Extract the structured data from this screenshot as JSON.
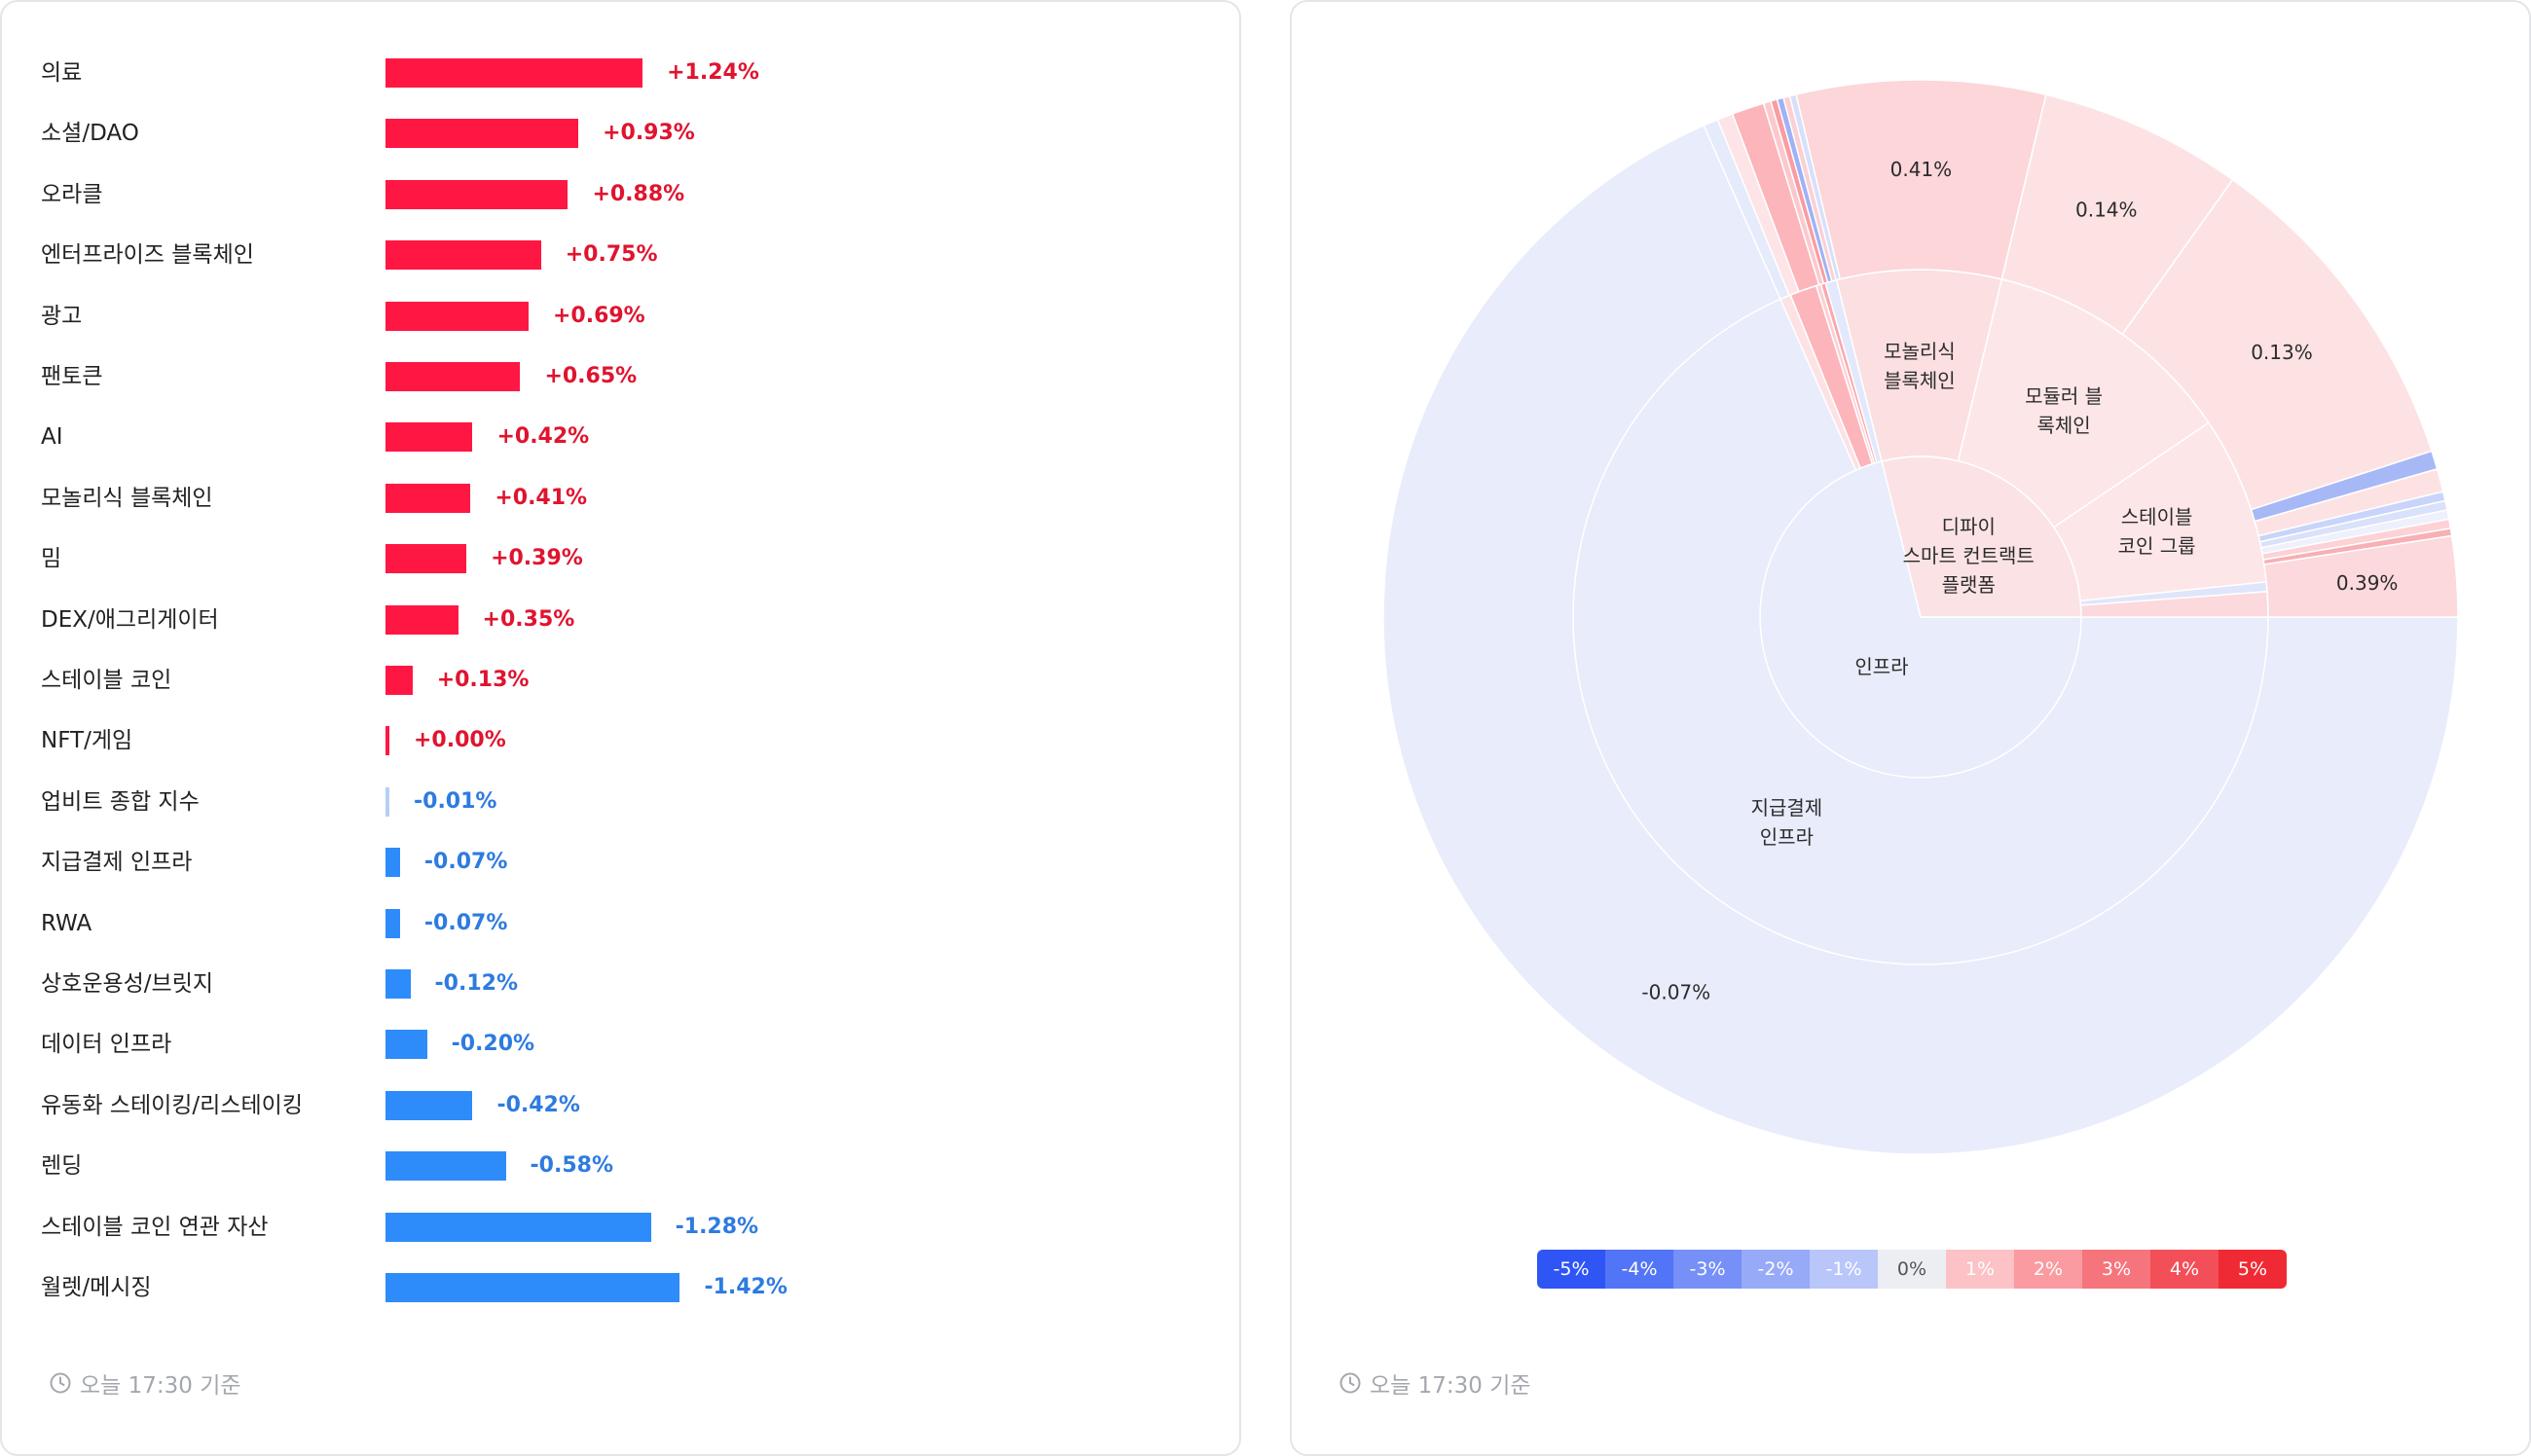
{
  "left": {
    "rows": [
      {
        "label": "의료",
        "value": 1.24,
        "text": "+1.24%"
      },
      {
        "label": "소셜/DAO",
        "value": 0.93,
        "text": "+0.93%"
      },
      {
        "label": "오라클",
        "value": 0.88,
        "text": "+0.88%"
      },
      {
        "label": "엔터프라이즈 블록체인",
        "value": 0.75,
        "text": "+0.75%"
      },
      {
        "label": "광고",
        "value": 0.69,
        "text": "+0.69%"
      },
      {
        "label": "팬토큰",
        "value": 0.65,
        "text": "+0.65%"
      },
      {
        "label": "AI",
        "value": 0.42,
        "text": "+0.42%"
      },
      {
        "label": "모놀리식 블록체인",
        "value": 0.41,
        "text": "+0.41%"
      },
      {
        "label": "밈",
        "value": 0.39,
        "text": "+0.39%"
      },
      {
        "label": "DEX/애그리게이터",
        "value": 0.35,
        "text": "+0.35%"
      },
      {
        "label": "스테이블 코인",
        "value": 0.13,
        "text": "+0.13%"
      },
      {
        "label": "NFT/게임",
        "value": 0.0,
        "text": "+0.00%"
      },
      {
        "label": "업비트 종합 지수",
        "value": -0.01,
        "text": "-0.01%"
      },
      {
        "label": "지급결제 인프라",
        "value": -0.07,
        "text": "-0.07%"
      },
      {
        "label": "RWA",
        "value": -0.07,
        "text": "-0.07%"
      },
      {
        "label": "상호운용성/브릿지",
        "value": -0.12,
        "text": "-0.12%"
      },
      {
        "label": "데이터 인프라",
        "value": -0.2,
        "text": "-0.20%"
      },
      {
        "label": "유동화 스테이킹/리스테이킹",
        "value": -0.42,
        "text": "-0.42%"
      },
      {
        "label": "렌딩",
        "value": -0.58,
        "text": "-0.58%"
      },
      {
        "label": "스테이블 코인 연관 자산",
        "value": -1.28,
        "text": "-1.28%"
      },
      {
        "label": "월렛/메시징",
        "value": -1.42,
        "text": "-1.42%"
      }
    ],
    "footer": "오늘 17:30 기준"
  },
  "right": {
    "footer": "오늘 17:30 기준",
    "legend": [
      {
        "label": "-5%",
        "color": "#2f55f5"
      },
      {
        "label": "-4%",
        "color": "#5274f6"
      },
      {
        "label": "-3%",
        "color": "#7690f7"
      },
      {
        "label": "-2%",
        "color": "#97aaf8"
      },
      {
        "label": "-1%",
        "color": "#b9c6fa"
      },
      {
        "label": "0%",
        "color": "#eceef3",
        "text_color": "#555"
      },
      {
        "label": "1%",
        "color": "#fcc2c5"
      },
      {
        "label": "2%",
        "color": "#f99ba0"
      },
      {
        "label": "3%",
        "color": "#f6747b"
      },
      {
        "label": "4%",
        "color": "#f34f58"
      },
      {
        "label": "5%",
        "color": "#f02a34"
      }
    ]
  },
  "chart_data": [
    {
      "type": "bar",
      "orientation": "horizontal",
      "categories": [
        "의료",
        "소셜/DAO",
        "오라클",
        "엔터프라이즈 블록체인",
        "광고",
        "팬토큰",
        "AI",
        "모놀리식 블록체인",
        "밈",
        "DEX/애그리게이터",
        "스테이블 코인",
        "NFT/게임",
        "업비트 종합 지수",
        "지급결제 인프라",
        "RWA",
        "상호운용성/브릿지",
        "데이터 인프라",
        "유동화 스테이킹/리스테이킹",
        "렌딩",
        "스테이블 코인 연관 자산",
        "월렛/메시징"
      ],
      "values": [
        1.24,
        0.93,
        0.88,
        0.75,
        0.69,
        0.65,
        0.42,
        0.41,
        0.39,
        0.35,
        0.13,
        0.0,
        -0.01,
        -0.07,
        -0.07,
        -0.12,
        -0.2,
        -0.42,
        -0.58,
        -1.28,
        -1.42
      ],
      "colors": {
        "positive": "#ff1744",
        "negative": "#2e8bfa",
        "zero_neg": "#b7cff5"
      }
    },
    {
      "type": "sunburst",
      "start_angle_deg": 0,
      "rings": [
        {
          "ring": "inner",
          "segments": [
            {
              "name": "인프라",
              "start": 0,
              "end": 256,
              "color": "#e8ecfb",
              "label": "인프라"
            },
            {
              "name": "디파이 스마트 컨트랙트 플랫폼",
              "start": 256,
              "end": 360,
              "color": "#fbe3e5",
              "label": [
                "디파이",
                "스마트 컨트랙트",
                "플랫폼"
              ]
            }
          ]
        },
        {
          "ring": "middle",
          "segments": [
            {
              "name": "지급결제 인프라",
              "start": 0,
              "end": 246.2,
              "color": "#e8ecfb",
              "label": [
                "지급결제",
                "인프라"
              ]
            },
            {
              "name": "s_mid_a",
              "start": 246.2,
              "end": 248.0,
              "color": "#fde2e4"
            },
            {
              "name": "s_mid_b",
              "start": 248.0,
              "end": 252.5,
              "color": "#fcb5ba"
            },
            {
              "name": "s_mid_c",
              "start": 252.5,
              "end": 253.3,
              "color": "#fcd0d3"
            },
            {
              "name": "s_mid_d",
              "start": 253.3,
              "end": 254.1,
              "color": "#f9a7ad"
            },
            {
              "name": "s_mid_e",
              "start": 254.1,
              "end": 256.0,
              "color": "#e3e9fc"
            },
            {
              "name": "모놀리식 블록체인",
              "start": 256,
              "end": 283.5,
              "color": "#fcdfe1",
              "label": [
                "모놀리식",
                "블록체인"
              ]
            },
            {
              "name": "모듈러 블록체인",
              "start": 283.5,
              "end": 326,
              "color": "#fde6e8",
              "label": [
                "모듈러 블",
                "록체인"
              ]
            },
            {
              "name": "스테이블 코인 그룹",
              "start": 326,
              "end": 354.2,
              "color": "#fde6e8",
              "label": [
                "스테이블",
                "코인 그룹"
              ]
            },
            {
              "name": "s_mid_f",
              "start": 354.2,
              "end": 355.8,
              "color": "#dfe6fb"
            },
            {
              "name": "s_mid_g",
              "start": 355.8,
              "end": 360,
              "color": "#fcd9dc"
            }
          ]
        },
        {
          "ring": "outer",
          "segments": [
            {
              "name": "지급결제 인프라",
              "start": 0,
              "end": 246.2,
              "color": "#e8ecfb",
              "label": "-0.07%"
            },
            {
              "name": "o1",
              "start": 246.2,
              "end": 247.8,
              "color": "#e5ebfb"
            },
            {
              "name": "o2",
              "start": 247.8,
              "end": 249.5,
              "color": "#fde4e6"
            },
            {
              "name": "o3",
              "start": 249.5,
              "end": 253.0,
              "color": "#fcb5ba"
            },
            {
              "name": "o4",
              "start": 253.0,
              "end": 253.8,
              "color": "#fbc9cd"
            },
            {
              "name": "o5",
              "start": 253.8,
              "end": 254.5,
              "color": "#f99ca3"
            },
            {
              "name": "o6",
              "start": 254.5,
              "end": 255.2,
              "color": "#9fb2f6"
            },
            {
              "name": "o7",
              "start": 255.2,
              "end": 255.9,
              "color": "#fbd0d4"
            },
            {
              "name": "o8",
              "start": 255.9,
              "end": 256.6,
              "color": "#d7e0fb"
            },
            {
              "name": "모놀리식 블록체인",
              "start": 256.6,
              "end": 283.5,
              "color": "#fcd6d9",
              "label": "0.41%"
            },
            {
              "name": "o9",
              "start": 283.5,
              "end": 305.5,
              "color": "#fde2e4",
              "label": "0.14%"
            },
            {
              "name": "o10",
              "start": 305.5,
              "end": 342,
              "color": "#fde2e4",
              "label": "0.13%"
            },
            {
              "name": "o11",
              "start": 342,
              "end": 344.0,
              "color": "#a7b8f6"
            },
            {
              "name": "o12",
              "start": 344.0,
              "end": 346.5,
              "color": "#fde2e4"
            },
            {
              "name": "o13",
              "start": 346.5,
              "end": 347.5,
              "color": "#c8d4fa"
            },
            {
              "name": "o14",
              "start": 347.5,
              "end": 348.5,
              "color": "#d9e1fb"
            },
            {
              "name": "o15",
              "start": 348.5,
              "end": 349.5,
              "color": "#eef1fb"
            },
            {
              "name": "o16",
              "start": 349.5,
              "end": 350.5,
              "color": "#fcd2d6"
            },
            {
              "name": "o17",
              "start": 350.5,
              "end": 351.3,
              "color": "#f7b0b5"
            },
            {
              "name": "o18",
              "start": 351.3,
              "end": 360,
              "color": "#fcd9dc",
              "label": "0.39%"
            }
          ]
        }
      ]
    }
  ]
}
